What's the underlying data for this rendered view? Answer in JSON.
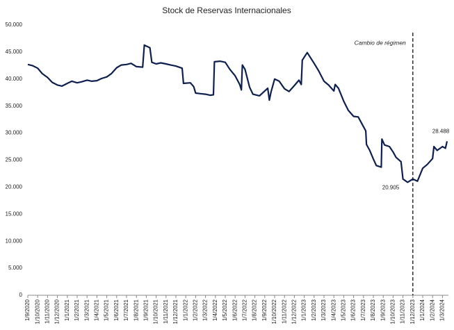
{
  "chart_data": {
    "type": "line",
    "title": "Stock de Reservas Internacionales",
    "color": "#0d1f4f",
    "x": [
      "1/9/2020",
      "15/9/2020",
      "1/10/2020",
      "15/10/2020",
      "1/11/2020",
      "15/11/2020",
      "1/12/2020",
      "15/12/2020",
      "1/1/2021",
      "15/1/2021",
      "1/2/2021",
      "15/2/2021",
      "1/3/2021",
      "15/3/2021",
      "1/4/2021",
      "15/4/2021",
      "1/5/2021",
      "15/5/2021",
      "1/6/2021",
      "15/6/2021",
      "1/7/2021",
      "15/7/2021",
      "1/8/2021",
      "20/8/2021",
      "25/8/2021",
      "1/9/2021",
      "12/9/2021",
      "18/9/2021",
      "1/10/2021",
      "15/10/2021",
      "1/11/2021",
      "15/11/2021",
      "1/12/2021",
      "20/12/2021",
      "24/12/2021",
      "15/1/2022",
      "25/1/2022",
      "1/2/2022",
      "15/2/2022",
      "1/3/2022",
      "15/3/2022",
      "25/3/2022",
      "28/3/2022",
      "15/4/2022",
      "1/5/2022",
      "15/5/2022",
      "1/6/2022",
      "15/6/2022",
      "20/6/2022",
      "23/6/2022",
      "1/7/2022",
      "15/7/2022",
      "25/7/2022",
      "15/8/2022",
      "1/9/2022",
      "10/9/2022",
      "15/9/2022",
      "20/9/2022",
      "1/10/2022",
      "15/10/2022",
      "1/11/2022",
      "15/11/2022",
      "1/12/2022",
      "15/12/2022",
      "22/12/2022",
      "25/12/2022",
      "10/1/2023",
      "1/2/2023",
      "15/2/2023",
      "1/3/2023",
      "15/3/2023",
      "1/4/2023",
      "5/4/2023",
      "15/4/2023",
      "1/5/2023",
      "15/5/2023",
      "1/6/2023",
      "15/6/2023",
      "1/7/2023",
      "8/7/2023",
      "10/7/2023",
      "20/7/2023",
      "1/8/2023",
      "10/8/2023",
      "25/8/2023",
      "27/8/2023",
      "5/9/2023",
      "20/9/2023",
      "1/10/2023",
      "10/10/2023",
      "25/10/2023",
      "1/11/2023",
      "15/11/2023",
      "1/12/2023",
      "15/12/2023",
      "1/1/2024",
      "15/1/2024",
      "1/2/2024",
      "5/2/2024",
      "15/2/2024",
      "1/3/2024",
      "10/3/2024",
      "15/3/2024"
    ],
    "values": [
      42700,
      42500,
      42000,
      41000,
      40300,
      39400,
      38900,
      38700,
      39200,
      39600,
      39300,
      39500,
      39800,
      39600,
      39700,
      40100,
      40400,
      41000,
      42100,
      42600,
      42700,
      42900,
      42300,
      42200,
      46300,
      46100,
      45800,
      43100,
      42800,
      43000,
      42800,
      42600,
      42400,
      42000,
      39200,
      39300,
      38600,
      37400,
      37300,
      37200,
      37000,
      37100,
      43200,
      43300,
      43100,
      41800,
      40600,
      39000,
      38000,
      42600,
      41800,
      38500,
      37200,
      36900,
      37800,
      38300,
      36100,
      37600,
      40000,
      39600,
      38200,
      37700,
      38800,
      39800,
      39000,
      43500,
      44900,
      42900,
      41500,
      39600,
      38900,
      37800,
      39000,
      38300,
      35900,
      34200,
      33100,
      33000,
      31200,
      30400,
      27900,
      26800,
      25200,
      24000,
      23700,
      28900,
      27800,
      27500,
      26500,
      25500,
      24700,
      21500,
      20905,
      21500,
      21100,
      23500,
      24200,
      25300,
      27500,
      26800,
      27500,
      27200,
      28488
    ],
    "xticks": [
      "1/9/2020",
      "1/10/2020",
      "1/11/2020",
      "1/12/2020",
      "1/1/2021",
      "1/2/2021",
      "1/3/2021",
      "1/4/2021",
      "1/5/2021",
      "1/6/2021",
      "1/7/2021",
      "1/8/2021",
      "1/9/2021",
      "1/10/2021",
      "1/11/2021",
      "1/12/2021",
      "1/1/2022",
      "1/2/2022",
      "1/3/2022",
      "1/4/2022",
      "1/5/2022",
      "1/6/2022",
      "1/7/2022",
      "1/8/2022",
      "1/9/2022",
      "1/10/2022",
      "1/11/2022",
      "1/12/2022",
      "1/1/2023",
      "1/2/2023",
      "1/3/2023",
      "1/4/2023",
      "1/5/2023",
      "1/6/2023",
      "1/7/2023",
      "1/8/2023",
      "1/9/2023",
      "1/10/2023",
      "1/11/2023",
      "1/12/2023",
      "1/1/2024",
      "1/2/2024",
      "1/3/2024"
    ],
    "ylim": [
      0,
      50000
    ],
    "yticks": [
      {
        "value": 0,
        "label": "0"
      },
      {
        "value": 5000,
        "label": "5.000"
      },
      {
        "value": 10000,
        "label": "10.000"
      },
      {
        "value": 15000,
        "label": "15.000"
      },
      {
        "value": 20000,
        "label": "20.000"
      },
      {
        "value": 25000,
        "label": "25.000"
      },
      {
        "value": 30000,
        "label": "30.000"
      },
      {
        "value": 35000,
        "label": "35.000"
      },
      {
        "value": 40000,
        "label": "40.000"
      },
      {
        "value": 45000,
        "label": "45.000"
      },
      {
        "value": 50000,
        "label": "50.000"
      }
    ],
    "regime_change": {
      "text": "Cambio de régimen",
      "x": "1/12/2023"
    },
    "point_labels": [
      {
        "index": 92,
        "label": "20.905"
      },
      {
        "index": 102,
        "label": "28.488"
      }
    ]
  }
}
